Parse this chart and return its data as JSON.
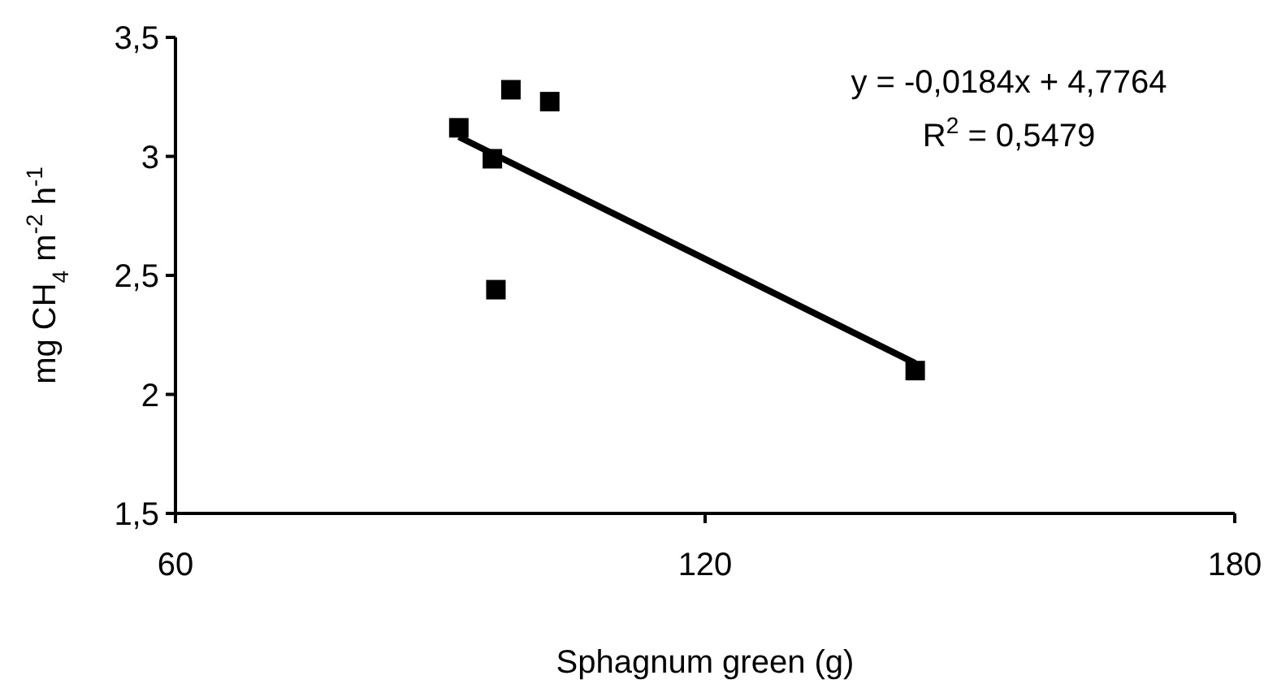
{
  "chart_data": {
    "type": "scatter",
    "xlabel": "Sphagnum green (g)",
    "ylabel": "mg CH$_{4}$ m$^{-2}$ h$^{-1}$",
    "xlim": [
      60,
      180
    ],
    "xticks": [
      60,
      120,
      180
    ],
    "ylim": [
      1.5,
      3.5
    ],
    "yticks": [
      {
        "value": 1.5,
        "label": "1,5"
      },
      2,
      {
        "value": 2.5,
        "label": "2,5"
      },
      3,
      {
        "value": 3.5,
        "label": "3,5"
      }
    ],
    "grid": false,
    "series": [
      {
        "marker": "square",
        "color": "#000000",
        "x": [
          92.1,
          98.0,
          102.4,
          95.9,
          96.3,
          143.8
        ],
        "values": [
          3.12,
          3.28,
          3.23,
          2.99,
          2.44,
          2.1
        ]
      },
      {
        "type": "line",
        "marker": "none",
        "color": "#000000",
        "x": [
          92.1,
          143.8
        ],
        "values": [
          3.082,
          2.131
        ]
      }
    ],
    "annotations": [
      "y = -0,0184x + 4,7764",
      "R$^{2}$ = 0,5479"
    ]
  }
}
